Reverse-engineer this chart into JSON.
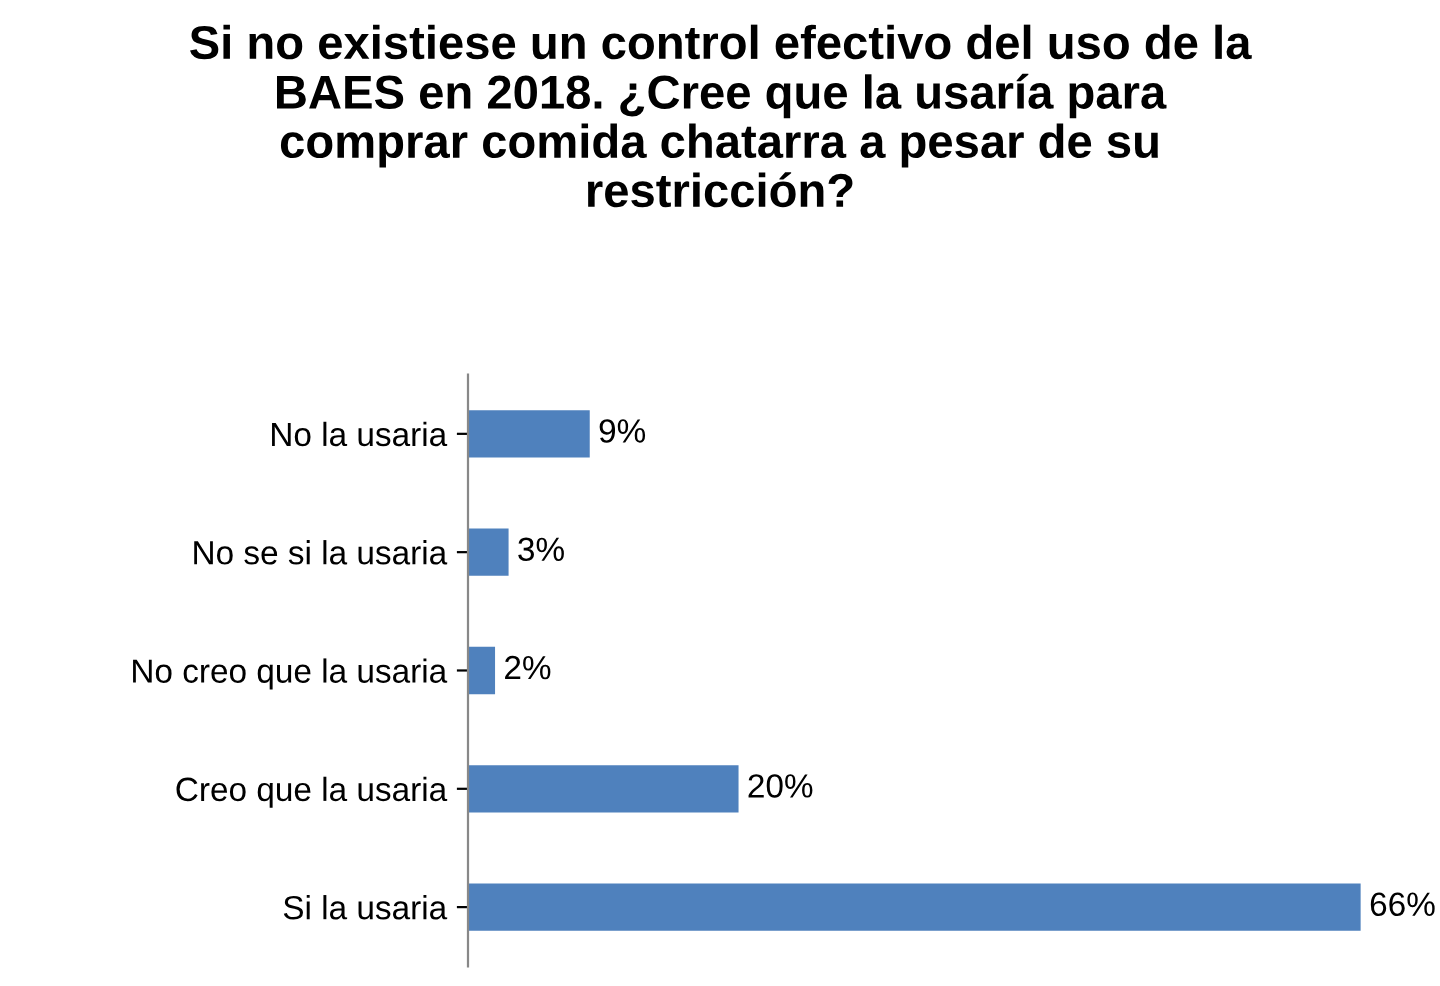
{
  "chart_data": {
    "type": "bar",
    "orientation": "horizontal",
    "title": "Si no existiese un control efectivo del uso de la\nBAES en 2018. ¿Cree que la usaría para\ncomprar comida chatarra a pesar de su\nrestricción?",
    "categories": [
      "No la usaria",
      "No se si la usaria",
      "No creo que la usaria",
      "Creo que la usaria",
      "Si la usaria"
    ],
    "values": [
      9,
      3,
      2,
      20,
      66
    ],
    "value_labels": [
      "9%",
      "3%",
      "2%",
      "20%",
      "66%"
    ],
    "color": "#4f81bd",
    "grid": false,
    "legend": false,
    "tick_labels": "y"
  }
}
